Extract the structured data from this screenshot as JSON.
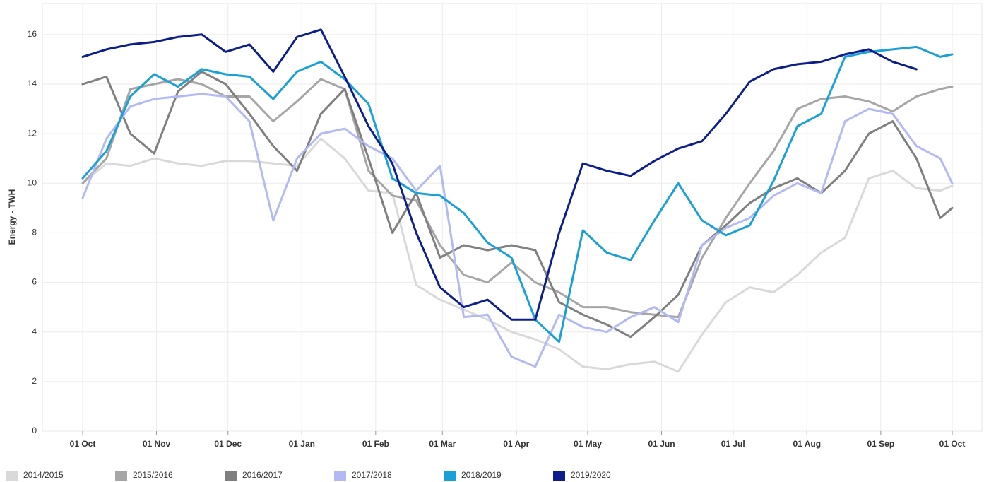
{
  "chart_data": {
    "type": "line",
    "y_label": "Energy - TWH",
    "x": [
      0,
      10,
      20,
      30,
      40,
      50,
      60,
      70,
      80,
      90,
      100,
      110,
      120,
      130,
      140,
      150,
      160,
      170,
      180,
      190,
      200,
      210,
      220,
      230,
      240,
      250,
      260,
      270,
      280,
      290,
      300,
      310,
      320,
      330,
      340,
      350,
      360,
      365
    ],
    "xlim": [
      0,
      365
    ],
    "xticks": [
      {
        "value": 0,
        "label": "01 Oct"
      },
      {
        "value": 31,
        "label": "01 Nov"
      },
      {
        "value": 61,
        "label": "01 Dec"
      },
      {
        "value": 92,
        "label": "01 Jan"
      },
      {
        "value": 123,
        "label": "01 Feb"
      },
      {
        "value": 151,
        "label": "01 Mar"
      },
      {
        "value": 182,
        "label": "01 Apr"
      },
      {
        "value": 212,
        "label": "01 May"
      },
      {
        "value": 243,
        "label": "01 Jun"
      },
      {
        "value": 273,
        "label": "01 Jul"
      },
      {
        "value": 304,
        "label": "01 Aug"
      },
      {
        "value": 335,
        "label": "01 Sep"
      },
      {
        "value": 365,
        "label": "01 Oct"
      }
    ],
    "ylim": [
      0,
      17.25
    ],
    "yticks": [
      0,
      2,
      4,
      6,
      8,
      10,
      12,
      14,
      16
    ],
    "grid": true,
    "legend": "bottom",
    "series": [
      {
        "name": "2014/2015",
        "color": "#d9d9d9",
        "values": [
          10.0,
          10.8,
          10.7,
          11.0,
          10.8,
          10.7,
          10.9,
          10.9,
          10.8,
          10.7,
          11.8,
          11.0,
          9.7,
          9.6,
          5.9,
          5.3,
          4.9,
          4.5,
          4.0,
          3.7,
          3.3,
          2.6,
          2.5,
          2.7,
          2.8,
          2.4,
          3.9,
          5.2,
          5.8,
          5.6,
          6.3,
          7.2,
          7.8,
          10.2,
          10.5,
          9.8,
          9.7,
          9.9
        ]
      },
      {
        "name": "2015/2016",
        "color": "#a6a6a6",
        "values": [
          10.0,
          11.0,
          13.8,
          14.0,
          14.2,
          14.0,
          13.5,
          13.5,
          12.5,
          13.3,
          14.2,
          13.8,
          10.5,
          9.5,
          9.3,
          7.5,
          6.3,
          6.0,
          6.8,
          6.0,
          5.6,
          5.0,
          5.0,
          4.8,
          4.7,
          4.6,
          7.0,
          8.6,
          10.0,
          11.3,
          13.0,
          13.4,
          13.5,
          13.3,
          12.9,
          13.5,
          13.8,
          13.9
        ]
      },
      {
        "name": "2016/2017",
        "color": "#7f7f7f",
        "values": [
          14.0,
          14.3,
          12.0,
          11.2,
          13.7,
          14.5,
          14.0,
          12.8,
          11.5,
          10.5,
          12.8,
          13.8,
          11.0,
          8.0,
          9.6,
          7.0,
          7.5,
          7.3,
          7.5,
          7.3,
          5.2,
          4.7,
          4.3,
          3.8,
          4.6,
          5.5,
          7.5,
          8.3,
          9.2,
          9.8,
          10.2,
          9.6,
          10.5,
          12.0,
          12.5,
          11.0,
          8.6,
          9.0
        ]
      },
      {
        "name": "2017/2018",
        "color": "#b3b9f5",
        "values": [
          9.4,
          11.8,
          13.1,
          13.4,
          13.5,
          13.6,
          13.5,
          12.5,
          8.5,
          11.0,
          12.0,
          12.2,
          11.5,
          11.0,
          9.7,
          10.7,
          4.6,
          4.7,
          3.0,
          2.6,
          4.7,
          4.2,
          4.0,
          4.6,
          5.0,
          4.4,
          7.5,
          8.2,
          8.6,
          9.5,
          10.0,
          9.6,
          12.5,
          13.0,
          12.8,
          11.5,
          11.0,
          10.0
        ]
      },
      {
        "name": "2018/2019",
        "color": "#1aa0d8",
        "values": [
          10.2,
          11.3,
          13.5,
          14.4,
          13.9,
          14.6,
          14.4,
          14.3,
          13.4,
          14.5,
          14.9,
          14.2,
          13.2,
          10.2,
          9.6,
          9.5,
          8.8,
          7.6,
          7.0,
          4.5,
          3.6,
          8.1,
          7.2,
          6.9,
          8.5,
          10.0,
          8.5,
          7.9,
          8.3,
          10.1,
          12.3,
          12.8,
          15.1,
          15.3,
          15.4,
          15.5,
          15.1,
          15.2
        ]
      },
      {
        "name": "2019/2020",
        "color": "#0b1e8c",
        "values": [
          15.1,
          15.4,
          15.6,
          15.7,
          15.9,
          16.0,
          15.3,
          15.6,
          14.5,
          15.9,
          16.2,
          14.3,
          12.3,
          10.8,
          8.0,
          5.8,
          5.0,
          5.3,
          4.5,
          4.5,
          8.0,
          10.8,
          10.5,
          10.3,
          10.9,
          11.4,
          11.7,
          12.8,
          14.1,
          14.6,
          14.8,
          14.9,
          15.2,
          15.4,
          14.9,
          14.6,
          null,
          null
        ]
      }
    ]
  }
}
